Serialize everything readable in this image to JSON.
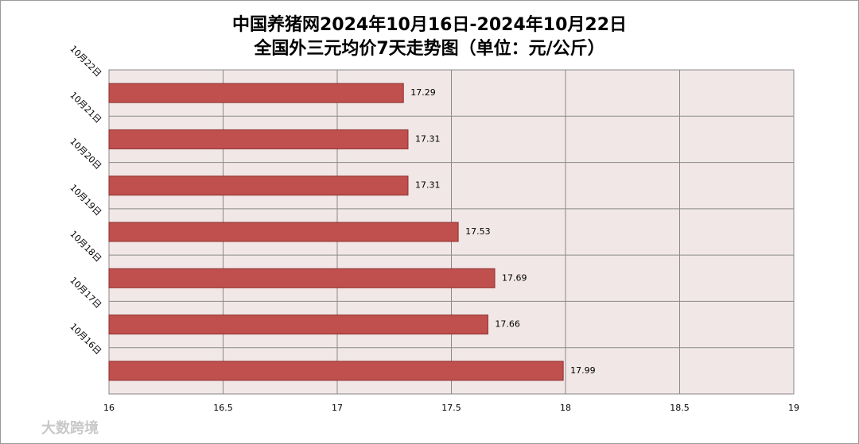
{
  "chart_data": {
    "type": "barh",
    "title": "中国养猪网2024年10月16日-2024年10月22日",
    "subtitle": "全国外三元均价7天走势图（单位：元/公斤）",
    "categories": [
      "10月22日",
      "10月21日",
      "10月20日",
      "10月19日",
      "10月18日",
      "10月17日",
      "10月16日"
    ],
    "values": [
      17.29,
      17.31,
      17.31,
      17.53,
      17.69,
      17.66,
      17.99
    ],
    "color": "#c0504d",
    "xlim": [
      16,
      19
    ],
    "xticks": [
      16,
      16.5,
      17,
      17.5,
      18,
      18.5,
      19
    ],
    "grid": true,
    "watermark": "大数跨境"
  }
}
